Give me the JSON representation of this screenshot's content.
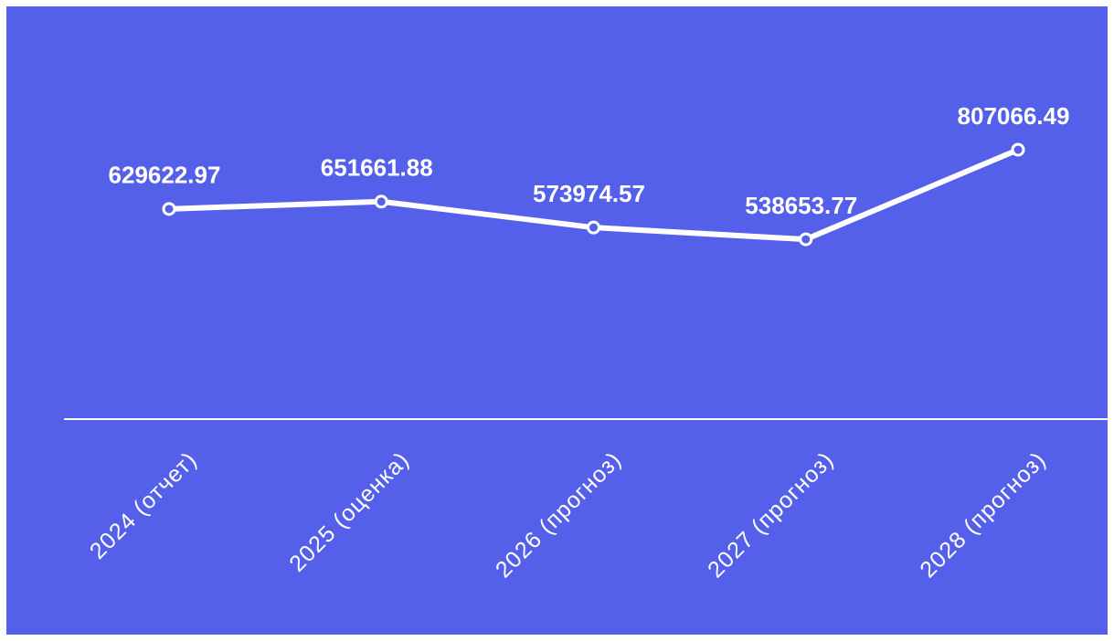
{
  "chart_data": {
    "type": "line",
    "categories": [
      "2024 (отчет)",
      "2025 (оценка)",
      "2026 (прогноз)",
      "2027 (прогноз)",
      "2028 (прогноз)"
    ],
    "series": [
      {
        "color": "#ffffff",
        "values": [
          629622.97,
          651661.88,
          573974.57,
          538653.77,
          807066.49
        ]
      }
    ],
    "ylim": [
      0,
      900000
    ],
    "background": "#5560ea"
  }
}
